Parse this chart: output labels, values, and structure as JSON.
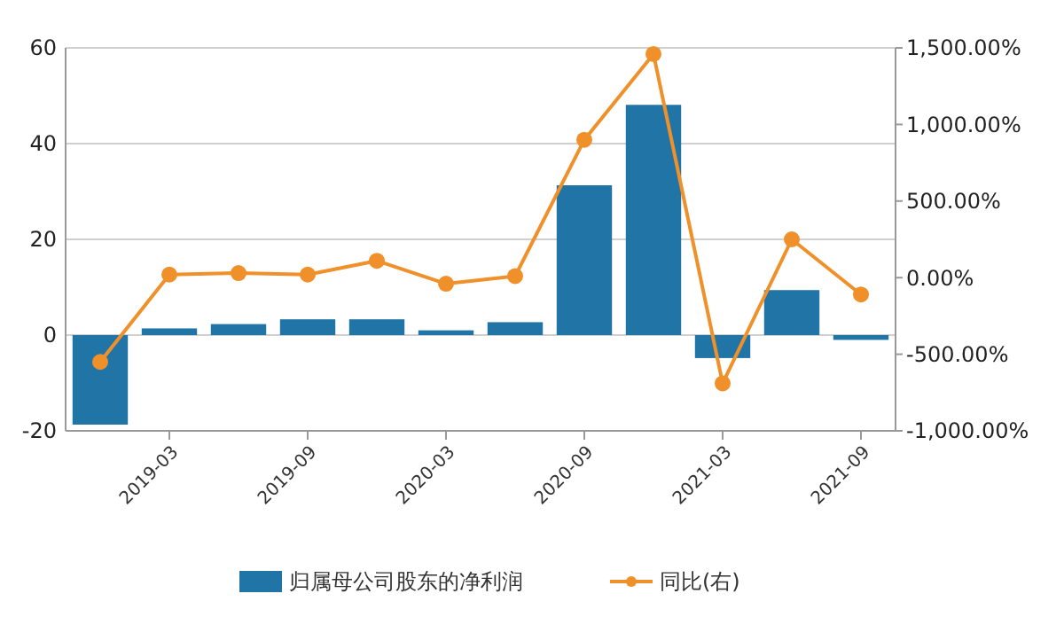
{
  "chart_data": {
    "type": "bar",
    "categories": [
      null,
      "2019-03",
      null,
      "2019-09",
      null,
      "2020-03",
      null,
      "2020-09",
      null,
      "2021-03",
      null,
      "2021-09"
    ],
    "series": [
      {
        "name": "归属母公司股东的净利润",
        "color": "#2175a6",
        "values": [
          -18.7,
          1.4,
          2.3,
          3.3,
          3.3,
          1.0,
          2.7,
          31.3,
          48.1,
          -4.8,
          9.4,
          -1.0
        ]
      },
      {
        "name": "同比(右)",
        "type": "line",
        "axis": "y2",
        "color": "#f0902a",
        "marker": "circle",
        "values": [
          -550,
          20,
          30,
          20,
          110,
          -40,
          10,
          900,
          1460,
          -690,
          250,
          -110
        ]
      }
    ],
    "ylim": [
      -20,
      60
    ],
    "yticks": [
      -20,
      0,
      20,
      40,
      60
    ],
    "y2lim": [
      -1000,
      1500
    ],
    "y2ticks": [
      {
        "value": -1000,
        "label": "-1,000.00%"
      },
      {
        "value": -500,
        "label": "-500.00%"
      },
      {
        "value": 0,
        "label": "0.00%"
      },
      {
        "value": 500,
        "label": "500.00%"
      },
      {
        "value": 1000,
        "label": "1,000.00%"
      },
      {
        "value": 1500,
        "label": "1,500.00%"
      }
    ],
    "grid": "y",
    "legend": "bottom"
  }
}
